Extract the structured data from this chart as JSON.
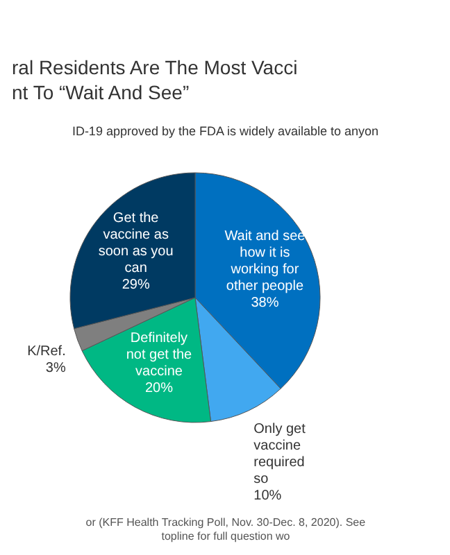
{
  "chart_data": {
    "type": "pie",
    "title": "ral Residents Are The Most Vacci nt To “Wait And See”",
    "subtitle": "ID-19 approved by the FDA is widely available to anyon",
    "categories": [
      "Wait and see how it is working for other people",
      "Only get vaccine required so",
      "Definitely not get the vaccine",
      "K/Ref.",
      "Get the vaccine as soon as you can"
    ],
    "values": [
      38,
      10,
      20,
      3,
      29
    ],
    "value_labels": [
      "38%",
      "10%",
      "20%",
      "3%",
      "29%"
    ],
    "colors": [
      "#0070c0",
      "#41a8f0",
      "#00b884",
      "#7f7f7f",
      "#003a62"
    ],
    "annotations": [
      "or (KFF Health Tracking Poll, Nov. 30-Dec. 8, 2020). See topline for full question wo"
    ]
  }
}
